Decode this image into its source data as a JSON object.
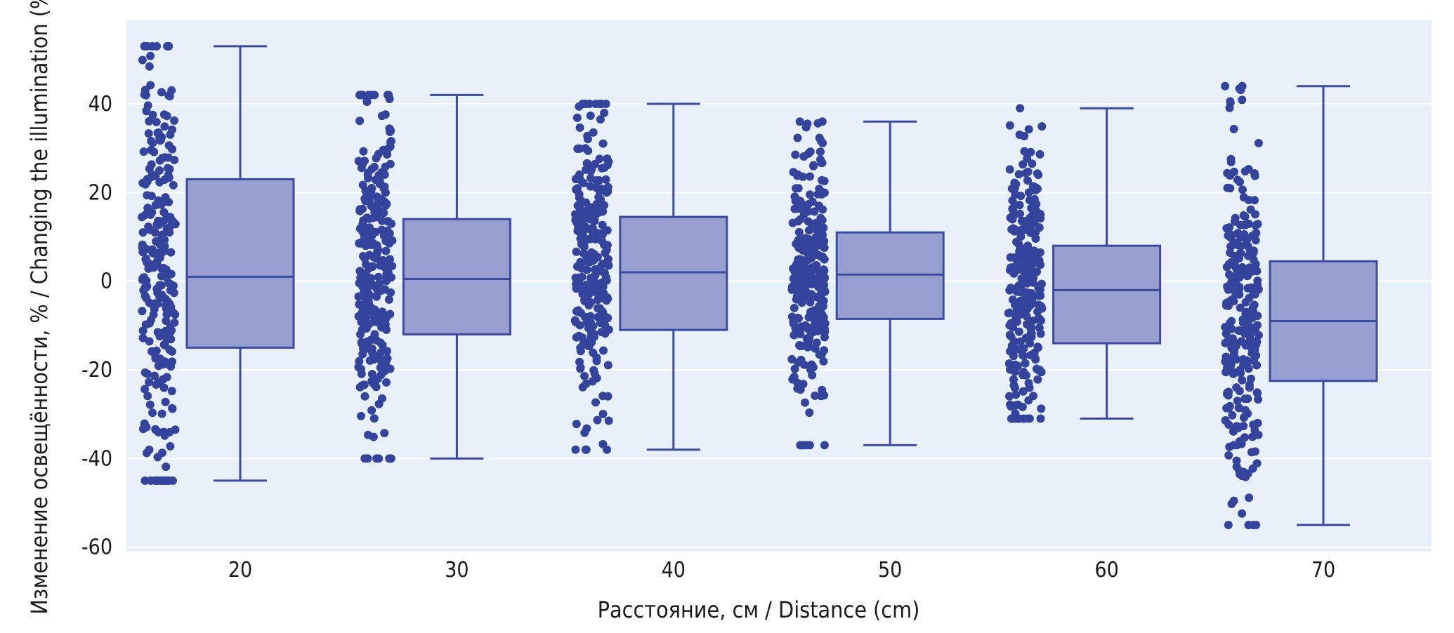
{
  "chart_data": {
    "type": "box",
    "overlay": "strip",
    "xlabel": "Расстояние, см / Distance (cm)",
    "ylabel": "Изменение освещённости, % / Changing the illumination (%)",
    "ylim": [
      -61,
      59
    ],
    "yticks": [
      40,
      20,
      0,
      -20,
      -40,
      -60
    ],
    "ytick_labels": [
      "40",
      "20",
      "0",
      "-20",
      "-40",
      "-60"
    ],
    "grid": true,
    "colors": {
      "plot_background": "#e8f0fa",
      "grid": "#ffffff",
      "box_fill": "#979fd0",
      "box_edge": "#3c4aa0",
      "point": "#34439b"
    },
    "categories": [
      "20",
      "30",
      "40",
      "50",
      "60",
      "70"
    ],
    "boxes": [
      {
        "category": "20",
        "whisker_low": -45,
        "q1": -15,
        "median": 1,
        "q3": 23,
        "whisker_high": 53
      },
      {
        "category": "30",
        "whisker_low": -40,
        "q1": -12,
        "median": 0.5,
        "q3": 14,
        "whisker_high": 42
      },
      {
        "category": "40",
        "whisker_low": -38,
        "q1": -11,
        "median": 2,
        "q3": 14.5,
        "whisker_high": 40
      },
      {
        "category": "50",
        "whisker_low": -37,
        "q1": -8.5,
        "median": 1.5,
        "q3": 11,
        "whisker_high": 36
      },
      {
        "category": "60",
        "whisker_low": -31,
        "q1": -14,
        "median": -2,
        "q3": 8,
        "whisker_high": 39
      },
      {
        "category": "70",
        "whisker_low": -55,
        "q1": -22.5,
        "median": -9,
        "q3": 4.5,
        "whisker_high": 44
      }
    ],
    "strip_points_per_category": 260
  }
}
